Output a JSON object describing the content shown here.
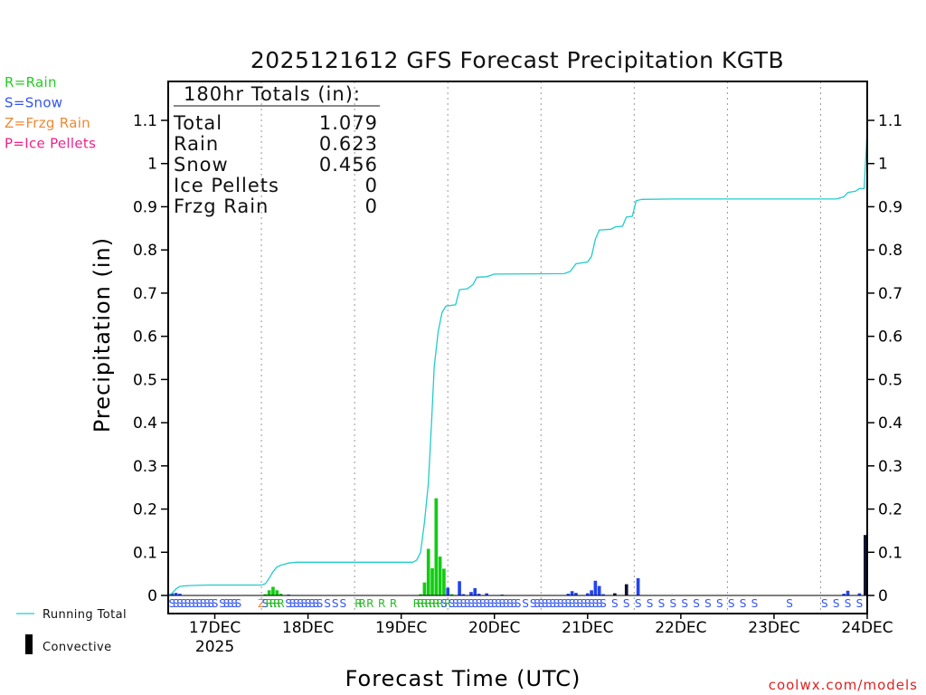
{
  "chart_data": {
    "type": "bar",
    "title": "2025121612 GFS Forecast Precipitation KGTB",
    "ylabel": "Precipitation (in)",
    "xlabel": "Forecast Time (UTC)",
    "ylim": [
      0,
      1.15
    ],
    "xlim_hours": [
      0,
      180
    ],
    "yticks": [
      0,
      0.1,
      0.2,
      0.3,
      0.4,
      0.5,
      0.6,
      0.7,
      0.8,
      0.9,
      1,
      1.1
    ],
    "ytick_labels": [
      "0",
      "0.1",
      "0.2",
      "0.3",
      "0.4",
      "0.5",
      "0.6",
      "0.7",
      "0.8",
      "0.9",
      "1",
      "1.1"
    ],
    "xticks": [
      {
        "hour": 12,
        "label": "17DEC",
        "sublabel": "2025"
      },
      {
        "hour": 36,
        "label": "18DEC",
        "sublabel": ""
      },
      {
        "hour": 60,
        "label": "19DEC",
        "sublabel": ""
      },
      {
        "hour": 84,
        "label": "20DEC",
        "sublabel": ""
      },
      {
        "hour": 108,
        "label": "21DEC",
        "sublabel": ""
      },
      {
        "hour": 132,
        "label": "22DEC",
        "sublabel": ""
      },
      {
        "hour": 156,
        "label": "23DEC",
        "sublabel": ""
      },
      {
        "hour": 180,
        "label": "24DEC",
        "sublabel": ""
      }
    ],
    "dotted_gridlines_hours": [
      24,
      48,
      72,
      96,
      120,
      144,
      168
    ],
    "totals": {
      "heading": "180hr Totals (in):",
      "rows": [
        {
          "label": "Total",
          "value": "1.079"
        },
        {
          "label": "Rain",
          "value": "0.623"
        },
        {
          "label": "Snow",
          "value": "0.456"
        },
        {
          "label": "Ice Pellets",
          "value": "0"
        },
        {
          "label": "Frzg Rain",
          "value": "0"
        }
      ]
    },
    "type_legend": [
      {
        "text": "R=Rain",
        "color": "#22cc22"
      },
      {
        "text": "S=Snow",
        "color": "#3355ee"
      },
      {
        "text": "Z=Frzg Rain",
        "color": "#ee8833"
      },
      {
        "text": "P=Ice Pellets",
        "color": "#ee2288"
      }
    ],
    "line_legend": "Running Total",
    "convective_legend": "Convective",
    "credit": "coolwx.com/models",
    "colors": {
      "rain": "#11cc11",
      "snow": "#2244ee",
      "convective": "#111133",
      "line": "#22cccc"
    },
    "running_total": [
      [
        0,
        0
      ],
      [
        1,
        0.005
      ],
      [
        2,
        0.015
      ],
      [
        3,
        0.021
      ],
      [
        4,
        0.022
      ],
      [
        6,
        0.023
      ],
      [
        10,
        0.024
      ],
      [
        24,
        0.024
      ],
      [
        25,
        0.027
      ],
      [
        26,
        0.04
      ],
      [
        27,
        0.055
      ],
      [
        28,
        0.066
      ],
      [
        29,
        0.07
      ],
      [
        31,
        0.075
      ],
      [
        33,
        0.077
      ],
      [
        58,
        0.077
      ],
      [
        63,
        0.077
      ],
      [
        64,
        0.082
      ],
      [
        65,
        0.1
      ],
      [
        66,
        0.17
      ],
      [
        67,
        0.26
      ],
      [
        67.8,
        0.4
      ],
      [
        68.5,
        0.53
      ],
      [
        69.5,
        0.61
      ],
      [
        70.5,
        0.655
      ],
      [
        71.5,
        0.67
      ],
      [
        74,
        0.673
      ],
      [
        75,
        0.708
      ],
      [
        77,
        0.71
      ],
      [
        78.5,
        0.72
      ],
      [
        79.5,
        0.737
      ],
      [
        82,
        0.738
      ],
      [
        84,
        0.744
      ],
      [
        102,
        0.745
      ],
      [
        103.5,
        0.75
      ],
      [
        105,
        0.768
      ],
      [
        108,
        0.772
      ],
      [
        109,
        0.785
      ],
      [
        110,
        0.825
      ],
      [
        111,
        0.846
      ],
      [
        114,
        0.848
      ],
      [
        115,
        0.853
      ],
      [
        117,
        0.855
      ],
      [
        118,
        0.876
      ],
      [
        119.5,
        0.878
      ],
      [
        120.5,
        0.914
      ],
      [
        122,
        0.917
      ],
      [
        130,
        0.918
      ],
      [
        172,
        0.918
      ],
      [
        174,
        0.923
      ],
      [
        175,
        0.933
      ],
      [
        177,
        0.936
      ],
      [
        178,
        0.942
      ],
      [
        179.2,
        0.942
      ],
      [
        180,
        1.079
      ]
    ],
    "bars": [
      {
        "h": 1,
        "v": 0.005,
        "t": "snow"
      },
      {
        "h": 2,
        "v": 0.006,
        "t": "snow"
      },
      {
        "h": 3,
        "v": 0.004,
        "t": "snow"
      },
      {
        "h": 25,
        "v": 0.003,
        "t": "rain"
      },
      {
        "h": 26,
        "v": 0.012,
        "t": "rain"
      },
      {
        "h": 27,
        "v": 0.02,
        "t": "rain"
      },
      {
        "h": 28,
        "v": 0.012,
        "t": "rain"
      },
      {
        "h": 29,
        "v": 0.004,
        "t": "rain"
      },
      {
        "h": 31,
        "v": 0.002,
        "t": "snow"
      },
      {
        "h": 65,
        "v": 0.003,
        "t": "rain"
      },
      {
        "h": 66,
        "v": 0.03,
        "t": "rain"
      },
      {
        "h": 67,
        "v": 0.108,
        "t": "rain"
      },
      {
        "h": 68,
        "v": 0.063,
        "t": "rain"
      },
      {
        "h": 69,
        "v": 0.225,
        "t": "rain"
      },
      {
        "h": 70,
        "v": 0.09,
        "t": "rain"
      },
      {
        "h": 71,
        "v": 0.062,
        "t": "rain"
      },
      {
        "h": 72,
        "v": 0.018,
        "t": "snow"
      },
      {
        "h": 73,
        "v": 0.003,
        "t": "rain"
      },
      {
        "h": 75,
        "v": 0.033,
        "t": "snow"
      },
      {
        "h": 76,
        "v": 0.003,
        "t": "snow"
      },
      {
        "h": 78,
        "v": 0.008,
        "t": "snow"
      },
      {
        "h": 79,
        "v": 0.017,
        "t": "snow"
      },
      {
        "h": 80,
        "v": 0.004,
        "t": "snow"
      },
      {
        "h": 82,
        "v": 0.005,
        "t": "snow"
      },
      {
        "h": 86,
        "v": 0.002,
        "t": "snow"
      },
      {
        "h": 103,
        "v": 0.004,
        "t": "snow"
      },
      {
        "h": 104,
        "v": 0.01,
        "t": "snow"
      },
      {
        "h": 105,
        "v": 0.006,
        "t": "snow"
      },
      {
        "h": 108,
        "v": 0.005,
        "t": "snow"
      },
      {
        "h": 109,
        "v": 0.012,
        "t": "snow"
      },
      {
        "h": 110,
        "v": 0.034,
        "t": "snow"
      },
      {
        "h": 111,
        "v": 0.022,
        "t": "snow"
      },
      {
        "h": 112,
        "v": 0.003,
        "t": "snow"
      },
      {
        "h": 115,
        "v": 0.005,
        "t": "convective"
      },
      {
        "h": 118,
        "v": 0.026,
        "t": "convective"
      },
      {
        "h": 121,
        "v": 0.04,
        "t": "snow"
      },
      {
        "h": 174,
        "v": 0.004,
        "t": "snow"
      },
      {
        "h": 175,
        "v": 0.011,
        "t": "snow"
      },
      {
        "h": 178,
        "v": 0.005,
        "t": "snow"
      },
      {
        "h": 179.5,
        "v": 0.14,
        "t": "convective"
      }
    ],
    "ptype_markers": [
      {
        "h": 1,
        "c": "S",
        "t": "snow"
      },
      {
        "h": 2,
        "c": "S",
        "t": "snow"
      },
      {
        "h": 3,
        "c": "S",
        "t": "snow"
      },
      {
        "h": 4,
        "c": "S",
        "t": "snow"
      },
      {
        "h": 5,
        "c": "S",
        "t": "snow"
      },
      {
        "h": 6,
        "c": "S",
        "t": "snow"
      },
      {
        "h": 7,
        "c": "S",
        "t": "snow"
      },
      {
        "h": 8,
        "c": "S",
        "t": "snow"
      },
      {
        "h": 9,
        "c": "S",
        "t": "snow"
      },
      {
        "h": 10,
        "c": "S",
        "t": "snow"
      },
      {
        "h": 11,
        "c": "S",
        "t": "snow"
      },
      {
        "h": 12,
        "c": "S",
        "t": "snow"
      },
      {
        "h": 14,
        "c": "S",
        "t": "snow"
      },
      {
        "h": 15,
        "c": "S",
        "t": "snow"
      },
      {
        "h": 16,
        "c": "S",
        "t": "snow"
      },
      {
        "h": 17,
        "c": "S",
        "t": "snow"
      },
      {
        "h": 18,
        "c": "S",
        "t": "snow"
      },
      {
        "h": 24,
        "c": "Z",
        "t": "frzg"
      },
      {
        "h": 25,
        "c": "S",
        "t": "snow"
      },
      {
        "h": 26,
        "c": "R",
        "t": "rain"
      },
      {
        "h": 27,
        "c": "R",
        "t": "rain"
      },
      {
        "h": 28,
        "c": "R",
        "t": "rain"
      },
      {
        "h": 29,
        "c": "R",
        "t": "rain"
      },
      {
        "h": 31,
        "c": "S",
        "t": "snow"
      },
      {
        "h": 32,
        "c": "S",
        "t": "snow"
      },
      {
        "h": 33,
        "c": "S",
        "t": "snow"
      },
      {
        "h": 34,
        "c": "S",
        "t": "snow"
      },
      {
        "h": 35,
        "c": "S",
        "t": "snow"
      },
      {
        "h": 36,
        "c": "S",
        "t": "snow"
      },
      {
        "h": 37,
        "c": "S",
        "t": "snow"
      },
      {
        "h": 38,
        "c": "S",
        "t": "snow"
      },
      {
        "h": 39,
        "c": "S",
        "t": "snow"
      },
      {
        "h": 41,
        "c": "S",
        "t": "snow"
      },
      {
        "h": 43,
        "c": "S",
        "t": "snow"
      },
      {
        "h": 45,
        "c": "S",
        "t": "snow"
      },
      {
        "h": 49,
        "c": "R",
        "t": "rain"
      },
      {
        "h": 50,
        "c": "R",
        "t": "rain"
      },
      {
        "h": 52,
        "c": "R",
        "t": "rain"
      },
      {
        "h": 55,
        "c": "R",
        "t": "rain"
      },
      {
        "h": 58,
        "c": "R",
        "t": "rain"
      },
      {
        "h": 64,
        "c": "R",
        "t": "rain"
      },
      {
        "h": 65,
        "c": "R",
        "t": "rain"
      },
      {
        "h": 66,
        "c": "R",
        "t": "rain"
      },
      {
        "h": 67,
        "c": "R",
        "t": "rain"
      },
      {
        "h": 68,
        "c": "R",
        "t": "rain"
      },
      {
        "h": 69,
        "c": "R",
        "t": "rain"
      },
      {
        "h": 70,
        "c": "R",
        "t": "rain"
      },
      {
        "h": 71,
        "c": "S",
        "t": "snow"
      },
      {
        "h": 72,
        "c": "R",
        "t": "rain"
      },
      {
        "h": 73,
        "c": "S",
        "t": "snow"
      },
      {
        "h": 74,
        "c": "S",
        "t": "snow"
      },
      {
        "h": 75,
        "c": "S",
        "t": "snow"
      },
      {
        "h": 76,
        "c": "S",
        "t": "snow"
      },
      {
        "h": 77,
        "c": "S",
        "t": "snow"
      },
      {
        "h": 78,
        "c": "S",
        "t": "snow"
      },
      {
        "h": 79,
        "c": "S",
        "t": "snow"
      },
      {
        "h": 80,
        "c": "S",
        "t": "snow"
      },
      {
        "h": 81,
        "c": "S",
        "t": "snow"
      },
      {
        "h": 82,
        "c": "S",
        "t": "snow"
      },
      {
        "h": 83,
        "c": "S",
        "t": "snow"
      },
      {
        "h": 84,
        "c": "S",
        "t": "snow"
      },
      {
        "h": 85,
        "c": "S",
        "t": "snow"
      },
      {
        "h": 86,
        "c": "S",
        "t": "snow"
      },
      {
        "h": 87,
        "c": "S",
        "t": "snow"
      },
      {
        "h": 88,
        "c": "S",
        "t": "snow"
      },
      {
        "h": 89,
        "c": "S",
        "t": "snow"
      },
      {
        "h": 90,
        "c": "S",
        "t": "snow"
      },
      {
        "h": 92,
        "c": "S",
        "t": "snow"
      },
      {
        "h": 94,
        "c": "S",
        "t": "snow"
      },
      {
        "h": 95,
        "c": "S",
        "t": "snow"
      },
      {
        "h": 96,
        "c": "S",
        "t": "snow"
      },
      {
        "h": 97,
        "c": "S",
        "t": "snow"
      },
      {
        "h": 98,
        "c": "S",
        "t": "snow"
      },
      {
        "h": 99,
        "c": "S",
        "t": "snow"
      },
      {
        "h": 100,
        "c": "S",
        "t": "snow"
      },
      {
        "h": 101,
        "c": "S",
        "t": "snow"
      },
      {
        "h": 102,
        "c": "S",
        "t": "snow"
      },
      {
        "h": 103,
        "c": "S",
        "t": "snow"
      },
      {
        "h": 104,
        "c": "S",
        "t": "snow"
      },
      {
        "h": 105,
        "c": "S",
        "t": "snow"
      },
      {
        "h": 106,
        "c": "S",
        "t": "snow"
      },
      {
        "h": 107,
        "c": "S",
        "t": "snow"
      },
      {
        "h": 108,
        "c": "S",
        "t": "snow"
      },
      {
        "h": 109,
        "c": "S",
        "t": "snow"
      },
      {
        "h": 110,
        "c": "S",
        "t": "snow"
      },
      {
        "h": 111,
        "c": "S",
        "t": "snow"
      },
      {
        "h": 112,
        "c": "S",
        "t": "snow"
      },
      {
        "h": 115,
        "c": "S",
        "t": "snow"
      },
      {
        "h": 118,
        "c": "S",
        "t": "snow"
      },
      {
        "h": 121,
        "c": "S",
        "t": "snow"
      },
      {
        "h": 124,
        "c": "S",
        "t": "snow"
      },
      {
        "h": 127,
        "c": "S",
        "t": "snow"
      },
      {
        "h": 130,
        "c": "S",
        "t": "snow"
      },
      {
        "h": 133,
        "c": "S",
        "t": "snow"
      },
      {
        "h": 136,
        "c": "S",
        "t": "snow"
      },
      {
        "h": 139,
        "c": "S",
        "t": "snow"
      },
      {
        "h": 142,
        "c": "S",
        "t": "snow"
      },
      {
        "h": 145,
        "c": "S",
        "t": "snow"
      },
      {
        "h": 148,
        "c": "S",
        "t": "snow"
      },
      {
        "h": 151,
        "c": "S",
        "t": "snow"
      },
      {
        "h": 160,
        "c": "S",
        "t": "snow"
      },
      {
        "h": 169,
        "c": "S",
        "t": "snow"
      },
      {
        "h": 172,
        "c": "S",
        "t": "snow"
      },
      {
        "h": 175,
        "c": "S",
        "t": "snow"
      },
      {
        "h": 178,
        "c": "S",
        "t": "snow"
      }
    ]
  }
}
